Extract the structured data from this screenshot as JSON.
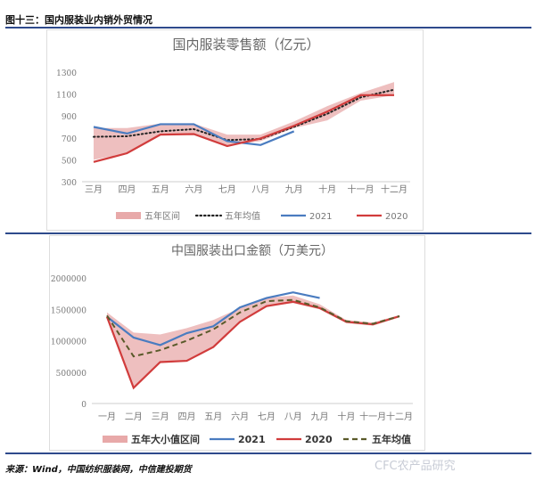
{
  "header": {
    "title": "图十三：国内服装业内销外贸情况"
  },
  "source": "来源：Wind，中国纺织服装网，中信建投期货",
  "watermark": "CFC农产品研究",
  "chart_data": [
    {
      "type": "line",
      "title": "国内服装零售额（亿元）",
      "categories": [
        "三月",
        "四月",
        "五月",
        "六月",
        "七月",
        "八月",
        "九月",
        "十月",
        "十一月",
        "十二月"
      ],
      "ylim": [
        300,
        1300
      ],
      "yticks": [
        300,
        500,
        700,
        900,
        1100,
        1300
      ],
      "legend": "bottom",
      "band": {
        "name": "五年区间",
        "color": "#e8a9a9",
        "low": [
          500,
          560,
          730,
          735,
          630,
          670,
          790,
          860,
          1040,
          1090
        ],
        "high": [
          790,
          790,
          830,
          830,
          730,
          730,
          850,
          990,
          1110,
          1210
        ]
      },
      "series": [
        {
          "name": "五年均值",
          "style": "dotted",
          "color": "#222222",
          "values": [
            710,
            715,
            760,
            780,
            680,
            690,
            800,
            920,
            1070,
            1140
          ]
        },
        {
          "name": "2021",
          "style": "solid",
          "color": "#4a7cc0",
          "values": [
            800,
            740,
            825,
            825,
            670,
            635,
            760,
            null,
            null,
            null
          ]
        },
        {
          "name": "2020",
          "style": "solid",
          "color": "#d13c3c",
          "values": [
            480,
            560,
            730,
            735,
            625,
            695,
            810,
            940,
            1090,
            1090
          ]
        }
      ]
    },
    {
      "type": "line",
      "title": "中国服装出口金额（万美元）",
      "categories": [
        "一月",
        "二月",
        "三月",
        "四月",
        "五月",
        "六月",
        "七月",
        "八月",
        "九月",
        "十月",
        "十一月",
        "十二月"
      ],
      "ylim": [
        0,
        2000000
      ],
      "yticks": [
        0,
        500000,
        1000000,
        1500000,
        2000000
      ],
      "legend": "bottom",
      "band": {
        "name": "五年大小值区间",
        "color": "#e8a9a9",
        "low": [
          1350000,
          250000,
          660000,
          680000,
          900000,
          1300000,
          1550000,
          1600000,
          1500000,
          1280000,
          1240000,
          1370000
        ],
        "high": [
          1450000,
          1130000,
          1100000,
          1200000,
          1330000,
          1520000,
          1680000,
          1720000,
          1580000,
          1330000,
          1290000,
          1410000
        ]
      },
      "series": [
        {
          "name": "2021",
          "style": "solid",
          "color": "#4a7cc0",
          "values": [
            1380000,
            1050000,
            930000,
            1120000,
            1230000,
            1530000,
            1680000,
            1770000,
            1680000,
            null,
            null,
            null
          ]
        },
        {
          "name": "2020",
          "style": "solid",
          "color": "#d13c3c",
          "values": [
            1380000,
            250000,
            660000,
            680000,
            900000,
            1300000,
            1550000,
            1620000,
            1520000,
            1300000,
            1260000,
            1390000
          ]
        },
        {
          "name": "五年均值",
          "style": "dashed",
          "color": "#5a5a2a",
          "values": [
            1400000,
            750000,
            850000,
            1000000,
            1180000,
            1450000,
            1630000,
            1650000,
            1530000,
            1310000,
            1270000,
            1390000
          ]
        }
      ]
    }
  ]
}
